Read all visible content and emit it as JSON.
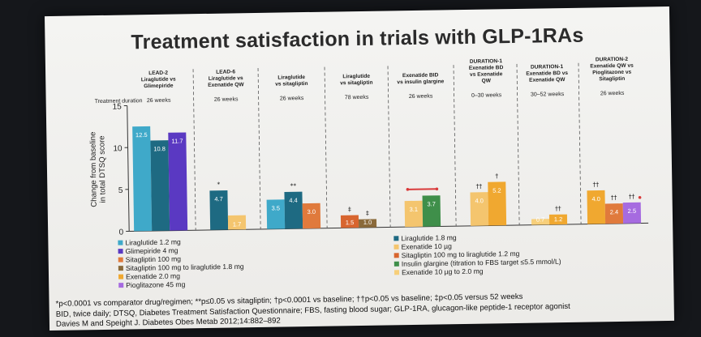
{
  "slide_title": "Treatment satisfaction in trials with GLP-1RAs",
  "chart_data": {
    "type": "bar",
    "title": "Treatment satisfaction in trials with GLP-1RAs",
    "ylabel": "Change from baseline in total DTSQ score",
    "ylim": [
      0,
      15
    ],
    "yticks": [
      0,
      5,
      10,
      15
    ],
    "treatment_duration_label": "Treatment duration",
    "trials": [
      {
        "name": "LEAD-2 Liraglutide vs Glimepiride",
        "lines": [
          "LEAD-2",
          "Liraglutide vs",
          "Glimepiride"
        ],
        "duration": "26 weeks",
        "bars": [
          {
            "series": "Liraglutide 1.2 mg",
            "value": 12.5,
            "label": "12.5",
            "marker": ""
          },
          {
            "series": "Liraglutide 1.8 mg",
            "value": 10.8,
            "label": "10.8",
            "marker": ""
          },
          {
            "series": "Glimepiride 4 mg",
            "value": 11.7,
            "label": "11.7",
            "marker": ""
          }
        ]
      },
      {
        "name": "LEAD-6 Liraglutide vs Exenatide QW",
        "lines": [
          "LEAD-6",
          "Liraglutide vs",
          "Exenatide QW"
        ],
        "duration": "26 weeks",
        "bars": [
          {
            "series": "Liraglutide 1.8 mg",
            "value": 4.7,
            "label": "4.7",
            "marker": "*"
          },
          {
            "series": "Exenatide 10 µg",
            "value": 1.7,
            "label": "1.7",
            "marker": ""
          }
        ]
      },
      {
        "name": "Liraglutide vs sitagliptin",
        "lines": [
          "Liraglutide",
          "vs sitagliptin"
        ],
        "duration": "26 weeks",
        "bars": [
          {
            "series": "Liraglutide 1.2 mg",
            "value": 3.5,
            "label": "3.5",
            "marker": ""
          },
          {
            "series": "Liraglutide 1.8 mg",
            "value": 4.4,
            "label": "4.4",
            "marker": "**"
          },
          {
            "series": "Sitagliptin 100 mg",
            "value": 3.0,
            "label": "3.0",
            "marker": ""
          }
        ]
      },
      {
        "name": "Liraglutide vs sitagliptin",
        "lines": [
          "Liraglutide",
          "vs sitagliptin"
        ],
        "duration": "78 weeks",
        "bars": [
          {
            "series": "Sitagliptin 100 mg to liraglutide 1.2 mg",
            "value": 1.5,
            "label": "1.5",
            "marker": "‡"
          },
          {
            "series": "Sitagliptin 100 mg to liraglutide 1.8 mg",
            "value": 1.0,
            "label": "1.0",
            "marker": "‡"
          }
        ]
      },
      {
        "name": "Exenatide BID vs insulin glargine",
        "lines": [
          "Exenatide BID",
          "vs insulin glargine"
        ],
        "duration": "26 weeks",
        "bars": [
          {
            "series": "Exenatide 10 µg",
            "value": 3.1,
            "label": "3.1",
            "marker": ""
          },
          {
            "series": "Insulin glargine (titration to FBS target ≤5.5 mmol/L)",
            "value": 3.7,
            "label": "3.7",
            "marker": ""
          }
        ]
      },
      {
        "name": "DURATION-1 Exenatide BD vs Exenatide QW",
        "lines": [
          "DURATION-1",
          "Exenatide BD",
          "vs Exenatide",
          "QW"
        ],
        "duration": "0–30 weeks",
        "bars": [
          {
            "series": "Exenatide 10 µg",
            "value": 4.0,
            "label": "4.0",
            "marker": "††"
          },
          {
            "series": "Exenatide 2.0 mg",
            "value": 5.2,
            "label": "5.2",
            "marker": "†"
          }
        ]
      },
      {
        "name": "DURATION-1 Exenatide BD vs Exenatide QW",
        "lines": [
          "DURATION-1",
          "Exenatide BD vs",
          "Exenatide QW"
        ],
        "duration": "30–52 weeks",
        "bars": [
          {
            "series": "Exenatide 10 µg to 2.0 mg",
            "value": 0.7,
            "label": "0.7",
            "marker": ""
          },
          {
            "series": "Exenatide 2.0 mg",
            "value": 1.2,
            "label": "1.2",
            "marker": "††"
          }
        ]
      },
      {
        "name": "DURATION-2 Exenatide QW vs Pioglitazone vs Sitagliptin",
        "lines": [
          "DURATION-2",
          "Exenatide QW vs",
          "Pioglitazone vs",
          "Sitagliptin"
        ],
        "duration": "26 weeks",
        "bars": [
          {
            "series": "Exenatide 2.0 mg",
            "value": 4.0,
            "label": "4.0",
            "marker": "††"
          },
          {
            "series": "Sitagliptin 100 mg",
            "value": 2.4,
            "label": "2.4",
            "marker": "††"
          },
          {
            "series": "Pioglitazone 45 mg",
            "value": 2.5,
            "label": "2.5",
            "marker": "††"
          }
        ]
      }
    ],
    "legend": [
      {
        "series": "Liraglutide 1.2 mg",
        "color": "#3fa9c9"
      },
      {
        "series": "Liraglutide 1.8 mg",
        "color": "#1e6a82"
      },
      {
        "series": "Glimepiride 4 mg",
        "color": "#5a39c2"
      },
      {
        "series": "Exenatide 10 µg",
        "color": "#f4c56e"
      },
      {
        "series": "Sitagliptin 100 mg",
        "color": "#e07a3c"
      },
      {
        "series": "Sitagliptin 100 mg to liraglutide 1.2 mg",
        "color": "#d8652f"
      },
      {
        "series": "Sitagliptin 100 mg to liraglutide 1.8 mg",
        "color": "#8a6a3a"
      },
      {
        "series": "Insulin glargine (titration to FBS target ≤5.5 mmol/L)",
        "color": "#3f8f4a"
      },
      {
        "series": "Exenatide 2.0 mg",
        "color": "#f0a830"
      },
      {
        "series": "Exenatide 10 µg to 2.0 mg",
        "color": "#f7cf7a"
      },
      {
        "series": "Pioglitazone 45 mg",
        "color": "#a66be0"
      }
    ],
    "significance_bracket": {
      "trial_index": 4,
      "color": "#d93a3a"
    },
    "significance_dot": {
      "trial_index": 7,
      "color": "#d93a3a"
    }
  },
  "footnotes": {
    "significance": "*p<0.0001 vs comparator drug/regimen; **p≤0.05 vs sitagliptin; †p<0.0001 vs baseline; ††p<0.05 vs baseline; ‡p<0.05 versus 52 weeks",
    "abbreviations": "BID, twice daily; DTSQ, Diabetes Treatment Satisfaction Questionnaire; FBS, fasting blood sugar; GLP-1RA, glucagon-like peptide-1 receptor agonist",
    "citation": "Davies M and Speight J. Diabetes Obes Metab 2012;14:882–892"
  }
}
